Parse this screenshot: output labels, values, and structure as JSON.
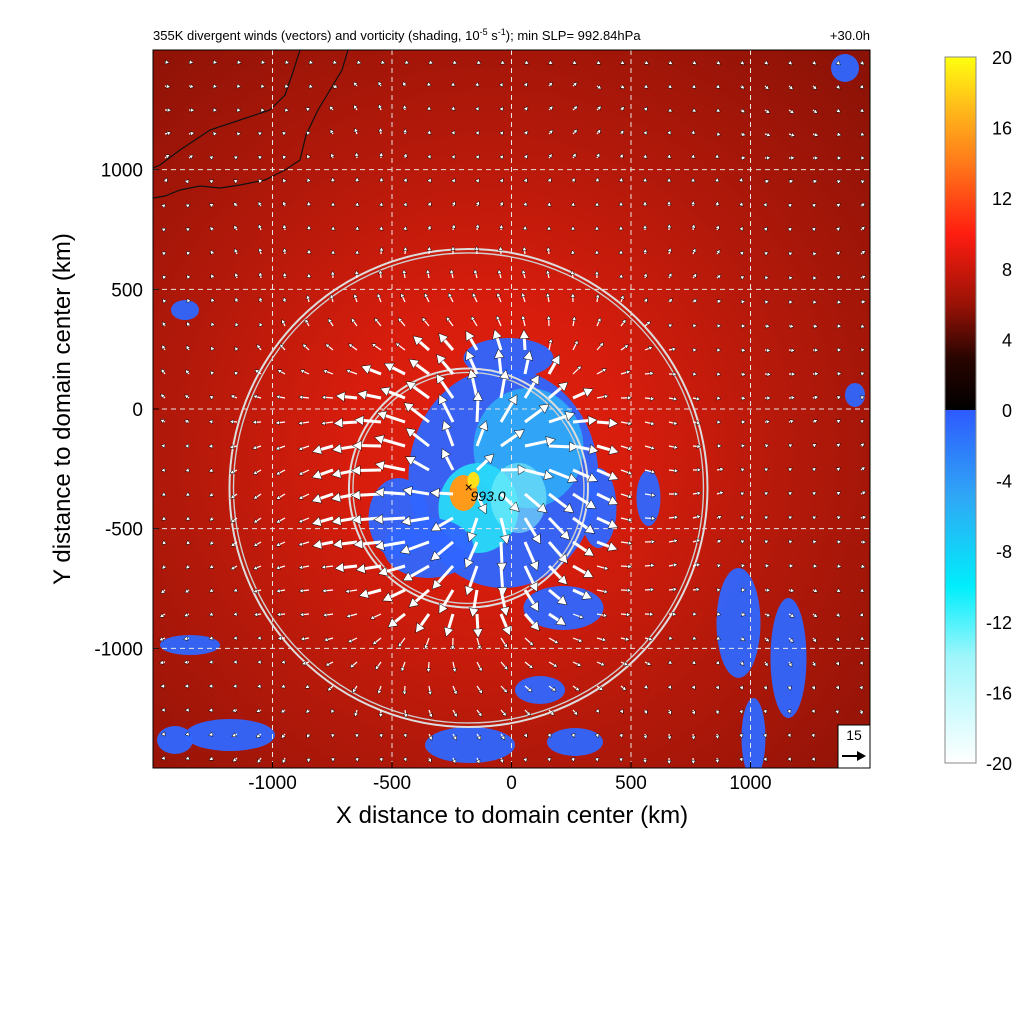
{
  "chart_data": {
    "type": "heatmap",
    "title": {
      "main": "355K divergent winds (vectors) and vorticity (shading, 10",
      "exp": "-5",
      "unit": " s",
      "unit_exp": "-1",
      "rest": "); min SLP= 992.84hPa"
    },
    "forecast_hour": "+30.0h",
    "xlabel": "X distance to domain center (km)",
    "ylabel": "Y distance to domain center (km)",
    "xlim": [
      -1500,
      1500
    ],
    "ylim": [
      -1500,
      1500
    ],
    "x_ticks": [
      -1000,
      -500,
      0,
      500,
      1000
    ],
    "y_ticks": [
      -1000,
      -500,
      0,
      500,
      1000
    ],
    "grid": true,
    "colorbar": {
      "ticks": [
        20,
        16,
        12,
        8,
        4,
        0,
        -4,
        -8,
        -12,
        -16,
        -20
      ],
      "range": [
        -20,
        20
      ],
      "stops": [
        {
          "v": -20,
          "color": "#ffffff"
        },
        {
          "v": -14,
          "color": "#9ff6fb"
        },
        {
          "v": -10,
          "color": "#00eefc"
        },
        {
          "v": -5,
          "color": "#2fa8f5"
        },
        {
          "v": -0.01,
          "color": "#2e5bff"
        },
        {
          "v": 0,
          "color": "#000000"
        },
        {
          "v": 3,
          "color": "#2a0500"
        },
        {
          "v": 6,
          "color": "#9a1206"
        },
        {
          "v": 10,
          "color": "#ff1d10"
        },
        {
          "v": 14,
          "color": "#ff7a1a"
        },
        {
          "v": 17,
          "color": "#ffb81a"
        },
        {
          "v": 20,
          "color": "#ffff10"
        }
      ]
    },
    "storm_center": {
      "x": -180,
      "y": -330,
      "label": "993.0"
    },
    "range_rings_km": [
      500,
      1000
    ],
    "reference_vector": {
      "value": "15",
      "label": "15"
    },
    "colors": {
      "inner_blue": "#2f66ff",
      "background_red": "#c81e0e"
    }
  }
}
